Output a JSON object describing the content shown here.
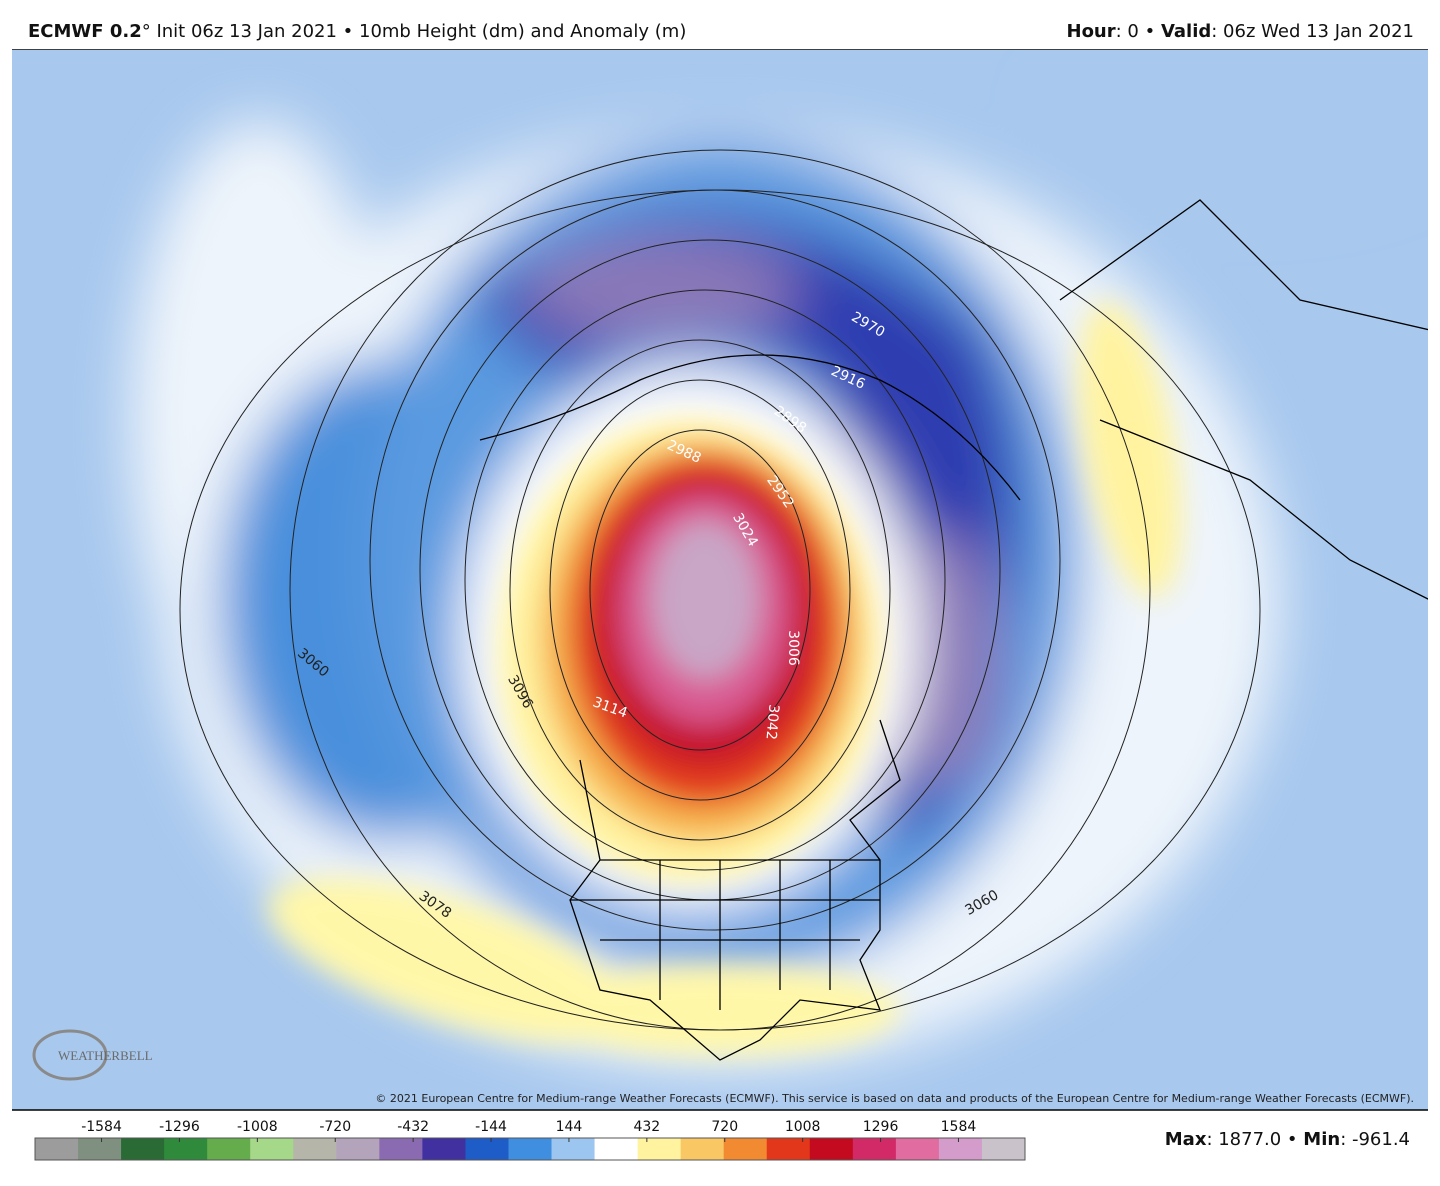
{
  "header": {
    "left": [
      {
        "text": "ECMWF 0.2",
        "bold": true
      },
      {
        "text": "° Init 06z 13 Jan 2021 • 10mb Height (dm) and Anomaly (m)",
        "bold": false
      }
    ],
    "right": [
      {
        "text": "Hour",
        "bold": true
      },
      {
        "text": ": 0 • ",
        "bold": false
      },
      {
        "text": "Valid",
        "bold": true
      },
      {
        "text": ": 06z Wed 13 Jan 2021",
        "bold": false
      }
    ]
  },
  "map": {
    "contour_labels": [
      "2970",
      "2916",
      "2898",
      "2988",
      "2952",
      "3024",
      "3006",
      "3042",
      "3096",
      "3114",
      "3060",
      "3078",
      "3060"
    ],
    "copyright": "© 2021 European Centre for Medium-range Weather Forecasts (ECMWF). This service is based on data and products of the European Centre for Medium-range Weather Forecasts (ECMWF).",
    "logo": "WEATHERBELL"
  },
  "colorbar": {
    "lim": [
      -1830,
      1830
    ],
    "ticks": [
      -1584,
      -1296,
      -1008,
      -720,
      -432,
      -144,
      144,
      432,
      720,
      1008,
      1296,
      1584
    ],
    "colors": [
      "#9c9c9c",
      "#7f8f80",
      "#2a6a35",
      "#2f8a3c",
      "#64ac4c",
      "#a6d88a",
      "#b5b5aa",
      "#b3a4bb",
      "#8a6ab0",
      "#4030a0",
      "#1e5cc8",
      "#3f8ee0",
      "#9cc6f0",
      "#ffffff",
      "#fff3a0",
      "#f9c764",
      "#f28a32",
      "#e2371a",
      "#c40a1e",
      "#d22a66",
      "#e06ca0",
      "#d39ccb",
      "#c9c2cb"
    ]
  },
  "stats": [
    {
      "text": "Max",
      "bold": true
    },
    {
      "text": ": 1877.0 • ",
      "bold": false
    },
    {
      "text": "Min",
      "bold": true
    },
    {
      "text": ": -961.4",
      "bold": false
    }
  ]
}
